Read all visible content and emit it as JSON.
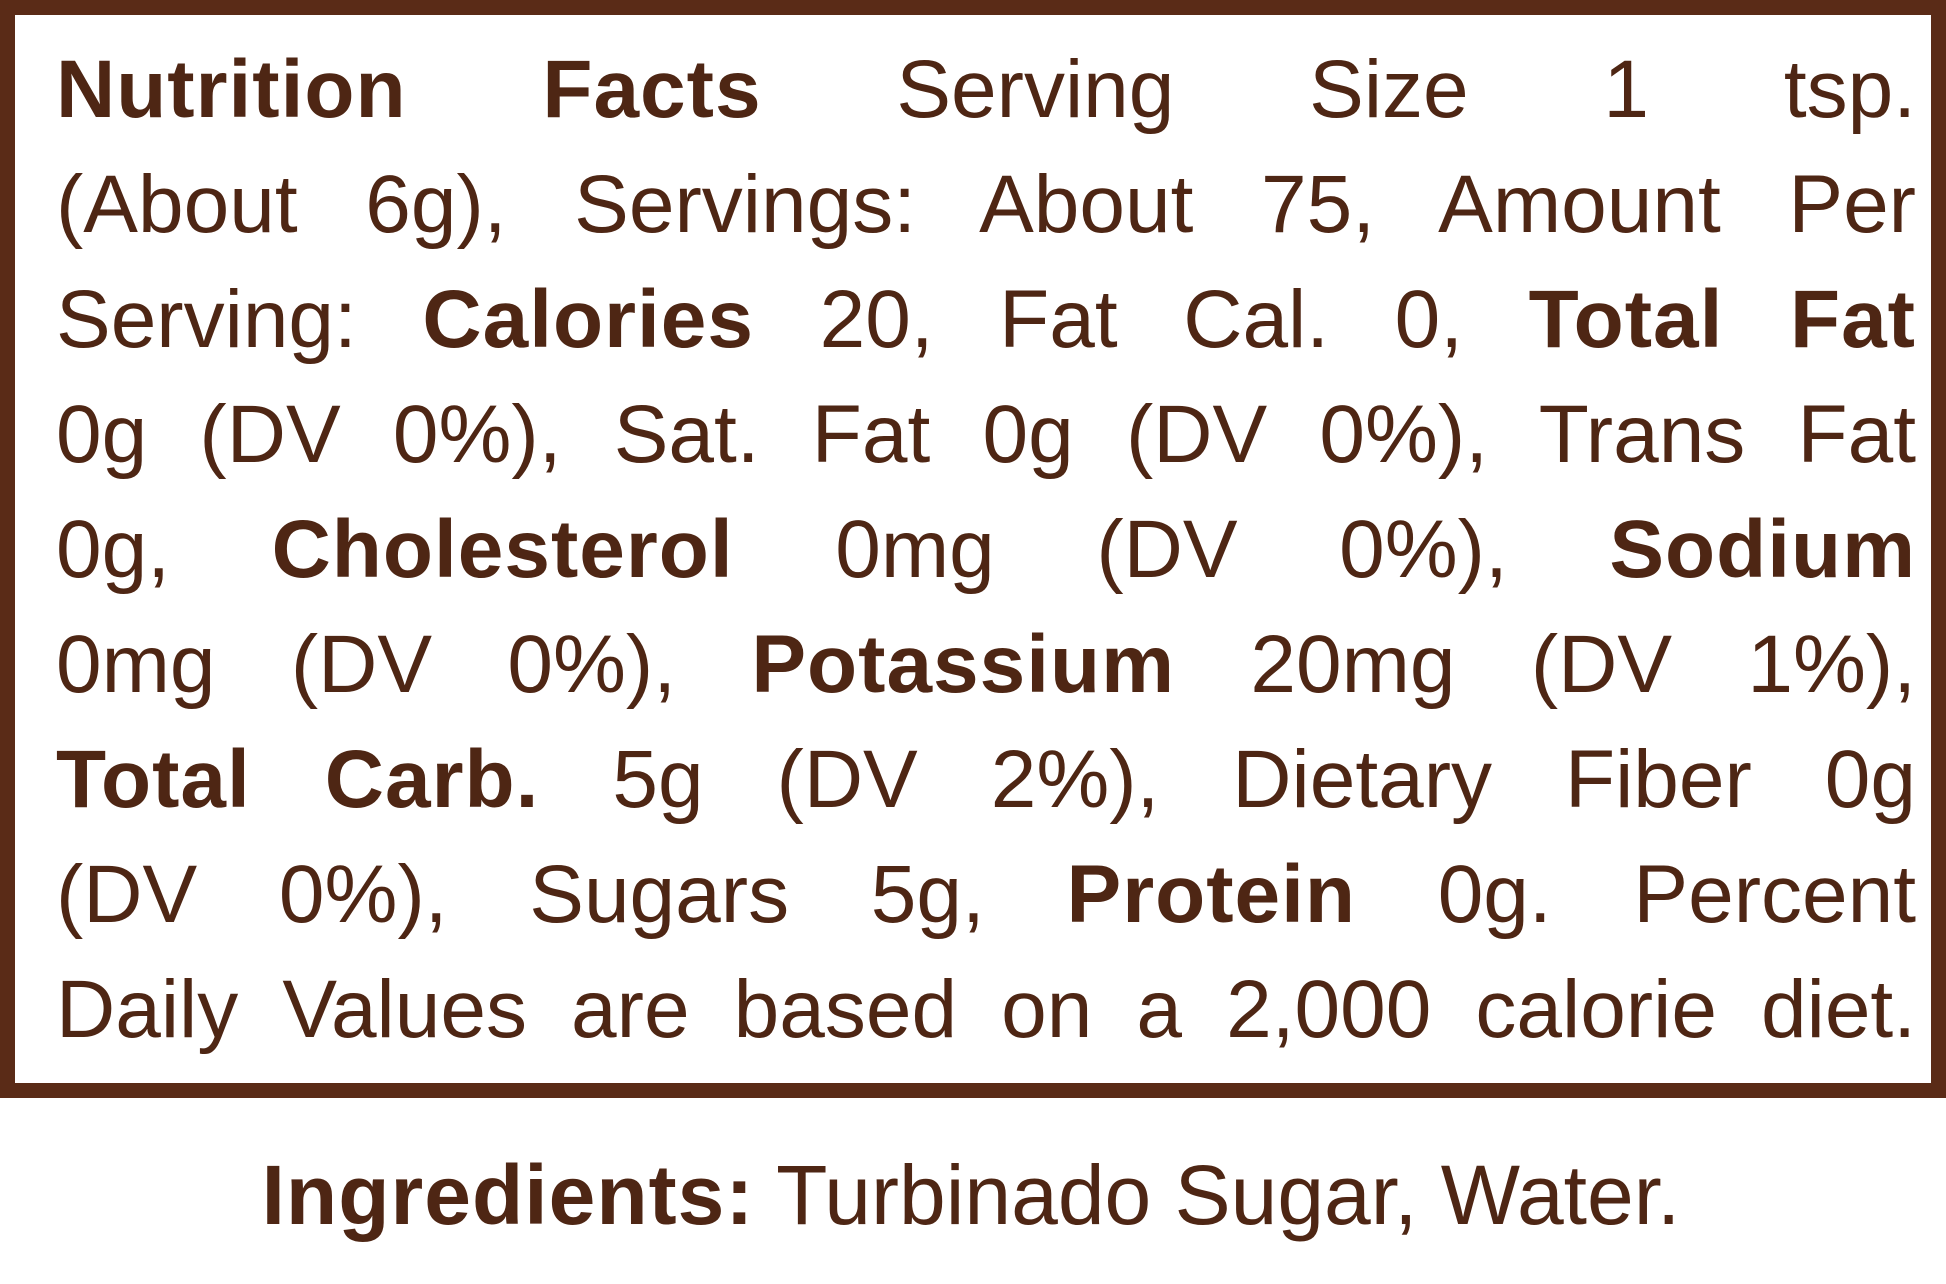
{
  "nutrition_facts": {
    "lines": [
      [
        {
          "text": "Nutrition Facts",
          "bold": true
        },
        {
          "text": " Serving Size 1 tsp.",
          "bold": false
        }
      ],
      [
        {
          "text": "(About 6g), Servings: About 75, Amount Per",
          "bold": false
        }
      ],
      [
        {
          "text": "Serving: ",
          "bold": false
        },
        {
          "text": "Calories",
          "bold": true
        },
        {
          "text": " 20, Fat Cal. 0, ",
          "bold": false
        },
        {
          "text": "Total Fat",
          "bold": true
        }
      ],
      [
        {
          "text": "0g (DV 0%), Sat. Fat 0g (DV 0%), Trans Fat",
          "bold": false
        }
      ],
      [
        {
          "text": "0g, ",
          "bold": false
        },
        {
          "text": "Cholesterol",
          "bold": true
        },
        {
          "text": " 0mg (DV 0%), ",
          "bold": false
        },
        {
          "text": "Sodium",
          "bold": true
        }
      ],
      [
        {
          "text": "0mg (DV 0%), ",
          "bold": false
        },
        {
          "text": "Potassium",
          "bold": true
        },
        {
          "text": " 20mg (DV 1%),",
          "bold": false
        }
      ],
      [
        {
          "text": "Total Carb.",
          "bold": true
        },
        {
          "text": " 5g (DV 2%), Dietary Fiber 0g",
          "bold": false
        }
      ],
      [
        {
          "text": "(DV 0%), Sugars 5g, ",
          "bold": false
        },
        {
          "text": "Protein",
          "bold": true
        },
        {
          "text": " 0g. Percent",
          "bold": false
        }
      ],
      [
        {
          "text": "Daily Values are based on a 2,000 calorie diet.",
          "bold": false
        }
      ]
    ]
  },
  "ingredients": {
    "label": "Ingredients:",
    "text": " Turbinado Sugar, Water."
  }
}
